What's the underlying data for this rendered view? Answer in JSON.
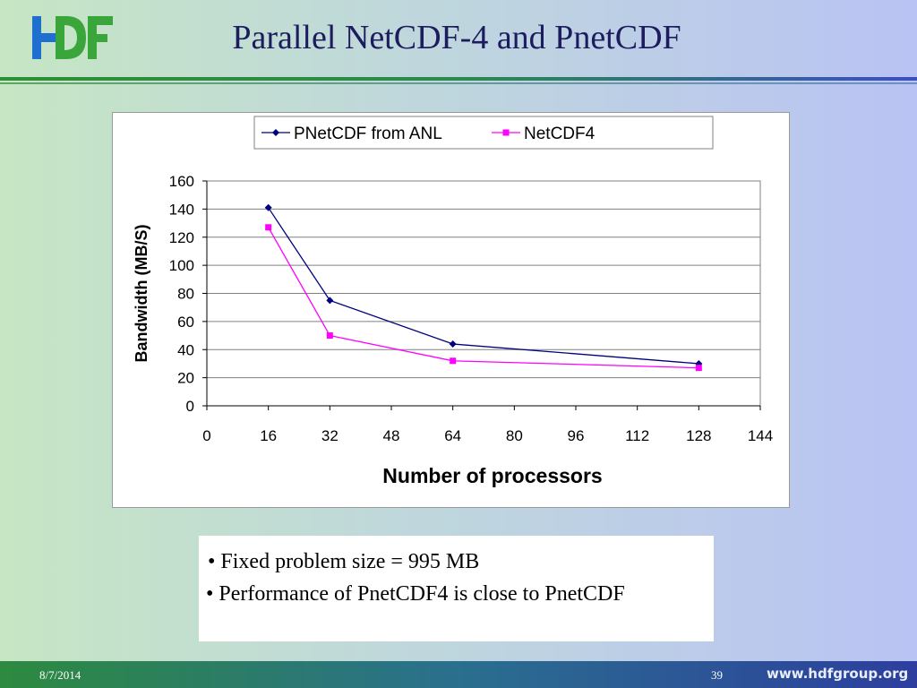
{
  "slide": {
    "title": "Parallel NetCDF-4 and PnetCDF",
    "bullets": [
      "Fixed problem size = 995 MB",
      "Performance of PnetCDF4 is close to PnetCDF"
    ],
    "footer": {
      "date": "8/7/2014",
      "page": "39",
      "url": "www.hdfgroup.org"
    },
    "logo": {
      "icon": "hdf-logo-icon",
      "colors": [
        "#1e6fd0",
        "#3aa53a"
      ]
    }
  },
  "chart_data": {
    "type": "line",
    "title": "",
    "xlabel": "Number of processors",
    "ylabel": "Bandwidth (MB/S)",
    "xlim": [
      0,
      144
    ],
    "ylim": [
      0,
      160
    ],
    "xticks": [
      0,
      16,
      32,
      48,
      64,
      80,
      96,
      112,
      128,
      144
    ],
    "yticks": [
      0,
      20,
      40,
      60,
      80,
      100,
      120,
      140,
      160
    ],
    "grid": "horizontal",
    "legend": "top-center",
    "series": [
      {
        "name": "PNetCDF from ANL",
        "color": "#000080",
        "marker": "diamond",
        "points": [
          [
            16,
            141
          ],
          [
            32,
            75
          ],
          [
            64,
            44
          ],
          [
            128,
            30
          ]
        ]
      },
      {
        "name": "NetCDF4",
        "color": "#ff00ff",
        "marker": "square",
        "points": [
          [
            16,
            127
          ],
          [
            32,
            50
          ],
          [
            64,
            32
          ],
          [
            128,
            27
          ]
        ]
      }
    ]
  }
}
